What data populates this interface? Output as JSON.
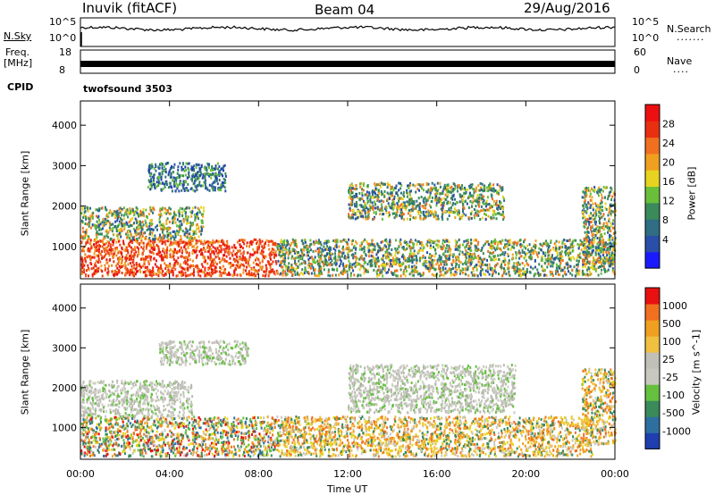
{
  "header": {
    "station": "Inuvik (fitACF)",
    "beam": "Beam 04",
    "date": "29/Aug/2016"
  },
  "nsky_panel": {
    "left_label": "N.Sky",
    "right_label": "N.Search",
    "ticks_left": [
      "10^5",
      "10^0"
    ],
    "ticks_right": [
      "10^5",
      "10^0"
    ]
  },
  "freq_panel": {
    "left_label": "Freq.",
    "left_unit": "[MHz]",
    "right_label": "Nave",
    "ticks_left": [
      "18",
      "8"
    ],
    "ticks_right": [
      "60",
      "0"
    ]
  },
  "cpid": {
    "label": "CPID",
    "value": "twofsound 3503"
  },
  "chart_data": [
    {
      "type": "heatmap",
      "quantity": "Power",
      "ylabel": "Slant Range [km]",
      "xlabel": "",
      "ylim": [
        200,
        4600
      ],
      "yticks": [
        "1000",
        "2000",
        "3000",
        "4000"
      ],
      "xlim": [
        0,
        24
      ],
      "colorbar_label": "Power [dB]",
      "colorbar_ticks": [
        "4",
        "8",
        "12",
        "16",
        "20",
        "24",
        "28"
      ],
      "colorbar_colors": [
        "#1a1aff",
        "#2a4fa8",
        "#2f6e85",
        "#3a8a5a",
        "#6abf3a",
        "#e8d420",
        "#f0a020",
        "#f07020",
        "#e83010",
        "#ee1010"
      ],
      "scatter_regions": [
        {
          "t0": 0.0,
          "t1": 8.8,
          "r0": 300,
          "r1": 1200,
          "level": "high"
        },
        {
          "t0": 0.0,
          "t1": 5.5,
          "r0": 1200,
          "r1": 2000,
          "level": "mid"
        },
        {
          "t0": 3.0,
          "t1": 6.5,
          "r0": 2400,
          "r1": 3100,
          "level": "low"
        },
        {
          "t0": 8.8,
          "t1": 24.0,
          "r0": 300,
          "r1": 1200,
          "level": "mid"
        },
        {
          "t0": 12.0,
          "t1": 19.0,
          "r0": 1700,
          "r1": 2600,
          "level": "mid"
        },
        {
          "t0": 22.5,
          "t1": 24.0,
          "r0": 600,
          "r1": 2500,
          "level": "mid"
        }
      ]
    },
    {
      "type": "heatmap",
      "quantity": "Velocity",
      "ylabel": "Slant Range [km]",
      "xlabel": "Time UT",
      "ylim": [
        200,
        4600
      ],
      "yticks": [
        "1000",
        "2000",
        "3000",
        "4000"
      ],
      "xlim": [
        0,
        24
      ],
      "xticks": [
        "00:00",
        "04:00",
        "08:00",
        "12:00",
        "16:00",
        "20:00",
        "00:00"
      ],
      "colorbar_label": "Velocity [m s^-1]",
      "colorbar_ticks": [
        "1000",
        "500",
        "100",
        "25",
        "-25",
        "-100",
        "-500",
        "-1000"
      ],
      "colorbar_colors": [
        "#1f3fb0",
        "#2e6fa0",
        "#3a8a5a",
        "#66c040",
        "#c8c8c0",
        "#c0c0b8",
        "#f0c040",
        "#f0a020",
        "#f07020",
        "#e81010"
      ],
      "scatter_regions": [
        {
          "t0": 0.0,
          "t1": 9.0,
          "r0": 300,
          "r1": 1300,
          "level": "mixed"
        },
        {
          "t0": 0.0,
          "t1": 5.0,
          "r0": 1300,
          "r1": 2200,
          "level": "gray"
        },
        {
          "t0": 3.5,
          "t1": 7.5,
          "r0": 2600,
          "r1": 3200,
          "level": "gray"
        },
        {
          "t0": 9.0,
          "t1": 23.0,
          "r0": 300,
          "r1": 1300,
          "level": "orange"
        },
        {
          "t0": 12.0,
          "t1": 19.5,
          "r0": 1400,
          "r1": 2600,
          "level": "gray"
        },
        {
          "t0": 22.5,
          "t1": 24.0,
          "r0": 600,
          "r1": 2500,
          "level": "orange"
        }
      ]
    }
  ]
}
